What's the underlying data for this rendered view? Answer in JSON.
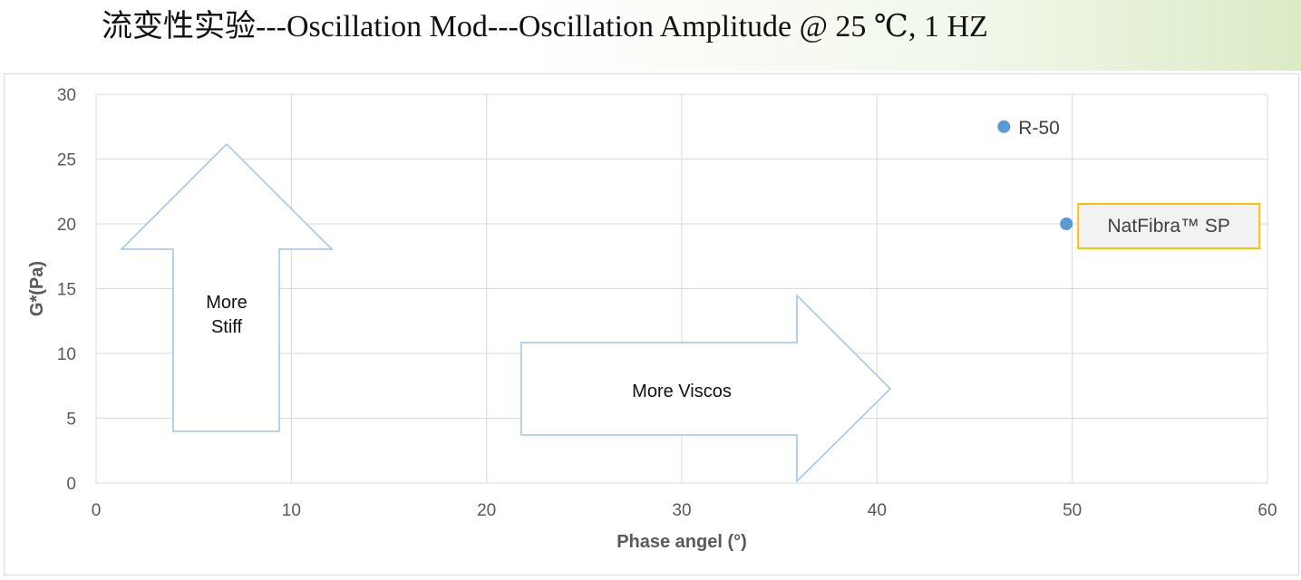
{
  "page": {
    "title": "流变性实验---Oscillation Mod---Oscillation Amplitude @ 25 ℃, 1 HZ"
  },
  "chart_data": {
    "type": "scatter",
    "xlabel": "Phase angel (°)",
    "ylabel": "G*(Pa)",
    "xlim": [
      0,
      60
    ],
    "ylim": [
      0,
      30
    ],
    "x_ticks": [
      0,
      10,
      20,
      30,
      40,
      50,
      60
    ],
    "y_ticks": [
      0,
      5,
      10,
      15,
      20,
      25,
      30
    ],
    "grid": true,
    "legend": "none",
    "series": [
      {
        "color": "#5b9bd5",
        "points": [
          {
            "x": 46.5,
            "y": 27.5,
            "label": "R-50"
          },
          {
            "x": 49.7,
            "y": 20.0,
            "label": "NatFibra™ SP"
          }
        ]
      }
    ],
    "annotations": [
      {
        "type": "arrow-up",
        "text_lines": [
          "More",
          "Stiff"
        ]
      },
      {
        "type": "arrow-right",
        "text_lines": [
          "More Viscos"
        ]
      }
    ],
    "colors": {
      "point": "#5b9bd5",
      "arrow_outline": "#9dc3e6",
      "grid": "#d9d9d9",
      "highlight_border": "#ffc000",
      "highlight_fill": "#f2f2f2"
    }
  }
}
